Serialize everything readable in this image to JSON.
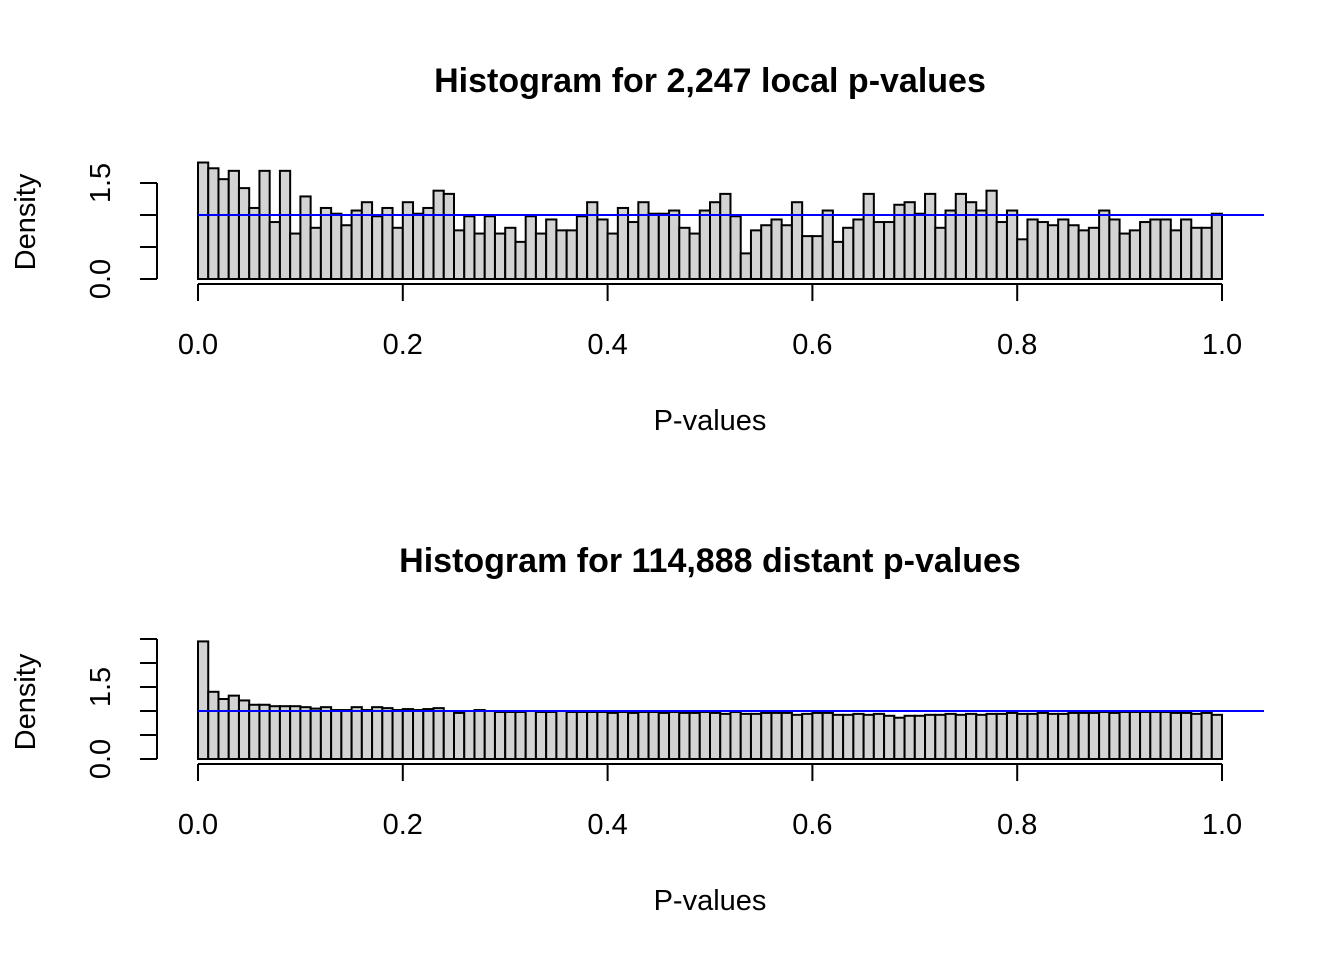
{
  "colors": {
    "bar_fill": "#d3d3d3",
    "bar_stroke": "#000000",
    "reference_line": "#0000ff",
    "background": "#ffffff"
  },
  "chart_data": [
    {
      "type": "bar",
      "title": "Histogram for 2,247 local p-values",
      "xlabel": "P-values",
      "ylabel": "Density",
      "xlim": [
        0,
        1
      ],
      "ylim": [
        0,
        1.5
      ],
      "xticks": [
        "0.0",
        "0.2",
        "0.4",
        "0.6",
        "0.8",
        "1.0"
      ],
      "yticks_labeled": [
        "0.0",
        "1.5"
      ],
      "ytick_values": [
        0,
        0.5,
        1.0,
        1.5
      ],
      "bin_width": 0.01,
      "reference_line_y": 1.0,
      "grid": false,
      "values": [
        1.82,
        1.73,
        1.56,
        1.69,
        1.42,
        1.11,
        1.69,
        0.89,
        1.69,
        0.71,
        1.29,
        0.8,
        1.11,
        1.02,
        0.84,
        1.07,
        1.2,
        0.98,
        1.11,
        0.8,
        1.2,
        1.02,
        1.11,
        1.38,
        1.33,
        0.76,
        0.98,
        0.71,
        0.98,
        0.71,
        0.8,
        0.58,
        0.98,
        0.71,
        0.93,
        0.76,
        0.76,
        0.98,
        1.2,
        0.93,
        0.71,
        1.11,
        0.89,
        1.2,
        1.02,
        1.02,
        1.07,
        0.8,
        0.71,
        1.07,
        1.2,
        1.33,
        0.98,
        0.4,
        0.76,
        0.84,
        0.93,
        0.84,
        1.2,
        0.67,
        0.67,
        1.07,
        0.58,
        0.8,
        0.93,
        1.33,
        0.89,
        0.89,
        1.16,
        1.2,
        1.02,
        1.33,
        0.8,
        1.07,
        1.33,
        1.2,
        1.07,
        1.38,
        0.89,
        1.07,
        0.62,
        0.93,
        0.89,
        0.84,
        0.93,
        0.84,
        0.76,
        0.8,
        1.07,
        0.93,
        0.71,
        0.76,
        0.89,
        0.93,
        0.93,
        0.76,
        0.93,
        0.8,
        0.8,
        1.02
      ]
    },
    {
      "type": "bar",
      "title": "Histogram for 114,888 distant p-values",
      "xlabel": "P-values",
      "ylabel": "Density",
      "xlim": [
        0,
        1
      ],
      "ylim": [
        0,
        2.5
      ],
      "xticks": [
        "0.0",
        "0.2",
        "0.4",
        "0.6",
        "0.8",
        "1.0"
      ],
      "yticks_labeled": [
        "0.0",
        "1.5"
      ],
      "ytick_values": [
        0,
        0.5,
        1.0,
        1.5,
        2.0,
        2.5
      ],
      "bin_width": 0.01,
      "reference_line_y": 1.0,
      "grid": false,
      "values": [
        2.45,
        1.4,
        1.25,
        1.32,
        1.22,
        1.13,
        1.13,
        1.1,
        1.1,
        1.1,
        1.08,
        1.05,
        1.08,
        1.02,
        1.02,
        1.08,
        1.02,
        1.08,
        1.06,
        1.02,
        1.04,
        1.02,
        1.04,
        1.06,
        1.0,
        0.96,
        1.0,
        1.02,
        1.0,
        0.98,
        0.98,
        0.98,
        1.0,
        0.98,
        0.98,
        1.0,
        0.98,
        0.98,
        0.98,
        0.98,
        0.96,
        0.98,
        0.96,
        0.98,
        0.98,
        0.96,
        0.98,
        0.96,
        0.96,
        0.98,
        0.96,
        0.94,
        0.98,
        0.94,
        0.94,
        0.96,
        0.96,
        0.96,
        0.92,
        0.94,
        0.96,
        0.96,
        0.92,
        0.92,
        0.94,
        0.92,
        0.94,
        0.9,
        0.86,
        0.9,
        0.9,
        0.92,
        0.92,
        0.94,
        0.92,
        0.94,
        0.92,
        0.94,
        0.94,
        0.96,
        0.94,
        0.94,
        0.96,
        0.94,
        0.94,
        0.96,
        0.96,
        0.96,
        0.98,
        0.96,
        0.98,
        0.98,
        0.98,
        0.98,
        0.98,
        0.96,
        0.96,
        0.94,
        0.96,
        0.92
      ]
    }
  ]
}
